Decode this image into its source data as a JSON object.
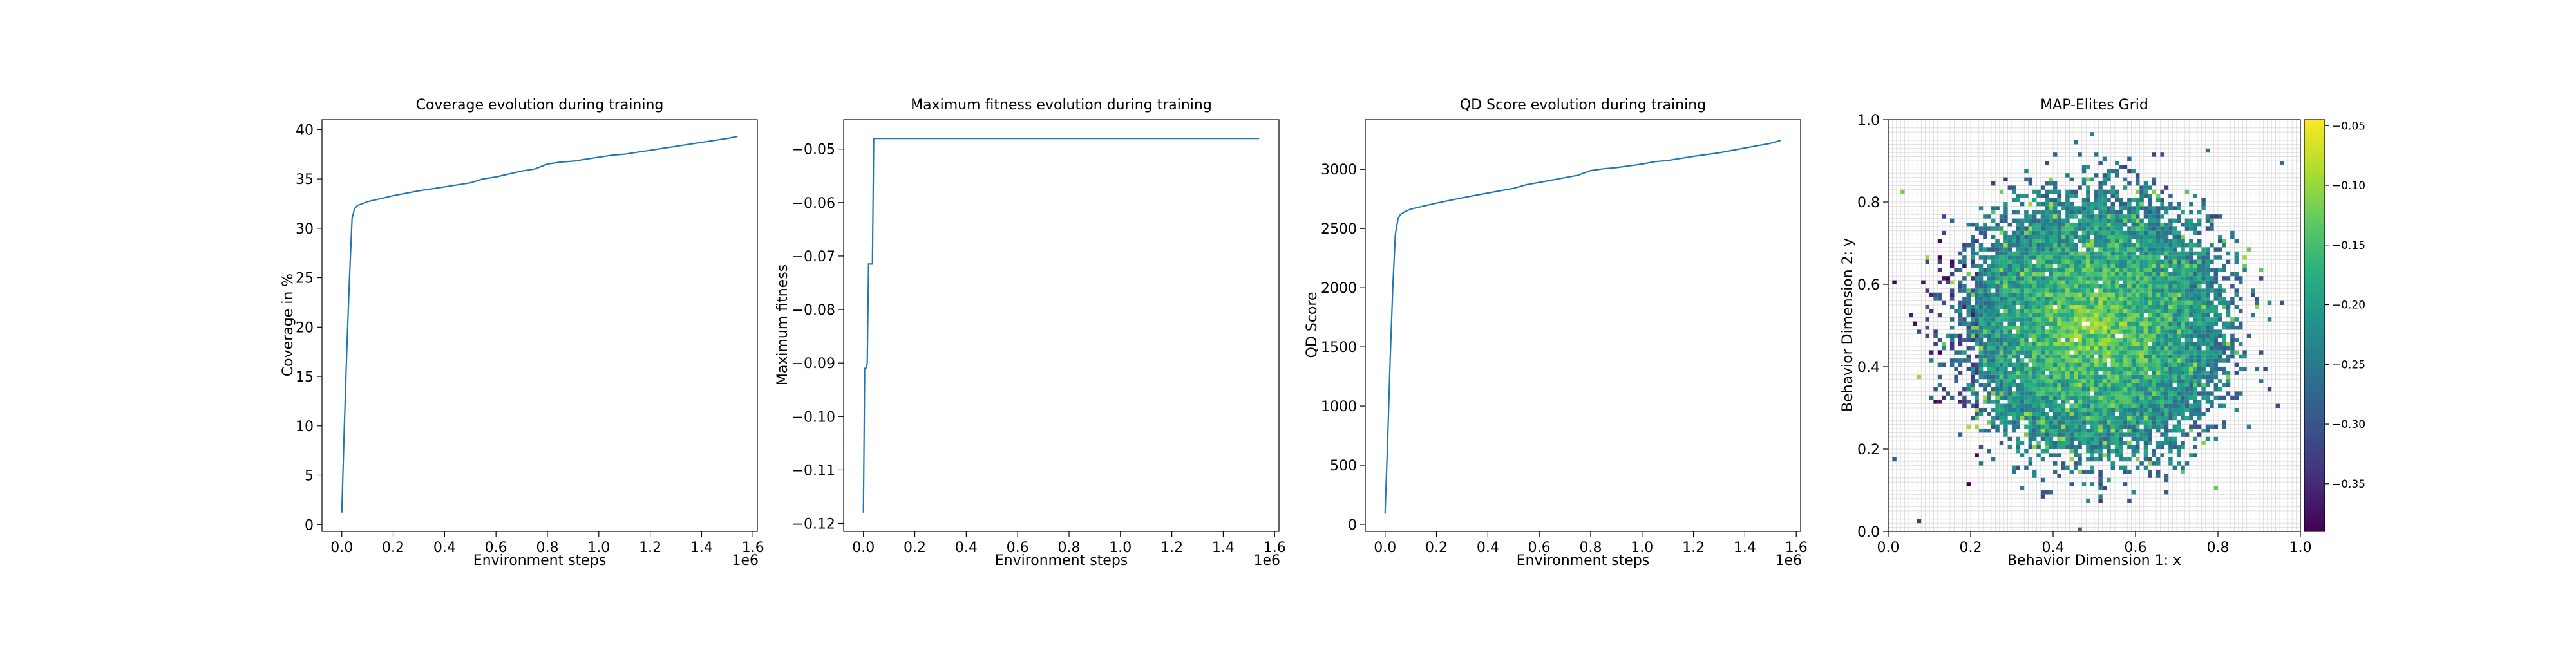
{
  "chart_data": [
    {
      "type": "line",
      "title": "Coverage evolution during training",
      "xlabel": "Environment steps",
      "ylabel": "Coverage in %",
      "x_offset_text": "1e6",
      "xlim": [
        -0.077,
        1.617
      ],
      "ylim": [
        -0.7,
        41.0
      ],
      "xticks": [
        0.0,
        0.2,
        0.4,
        0.6,
        0.8,
        1.0,
        1.2,
        1.4,
        1.6
      ],
      "xtick_labels": [
        "0.0",
        "0.2",
        "0.4",
        "0.6",
        "0.8",
        "1.0",
        "1.2",
        "1.4",
        "1.6"
      ],
      "yticks": [
        0,
        5,
        10,
        15,
        20,
        25,
        30,
        35,
        40
      ],
      "ytick_labels": [
        "0",
        "5",
        "10",
        "15",
        "20",
        "25",
        "30",
        "35",
        "40"
      ],
      "line_color": "#1f77b4",
      "series": [
        {
          "x": [
            0.0,
            0.01,
            0.02,
            0.03,
            0.04,
            0.05,
            0.06,
            0.08,
            0.1,
            0.15,
            0.2,
            0.3,
            0.4,
            0.5,
            0.55,
            0.6,
            0.7,
            0.75,
            0.8,
            0.85,
            0.9,
            1.0,
            1.05,
            1.1,
            1.2,
            1.3,
            1.4,
            1.5,
            1.54
          ],
          "y": [
            1.2,
            10.0,
            18.0,
            25.0,
            31.0,
            32.0,
            32.3,
            32.5,
            32.7,
            33.0,
            33.3,
            33.8,
            34.2,
            34.6,
            35.0,
            35.2,
            35.8,
            36.0,
            36.5,
            36.7,
            36.8,
            37.2,
            37.4,
            37.5,
            37.9,
            38.3,
            38.7,
            39.1,
            39.3
          ]
        }
      ]
    },
    {
      "type": "line",
      "title": "Maximum fitness evolution during training",
      "xlabel": "Environment steps",
      "ylabel": "Maximum fitness",
      "x_offset_text": "1e6",
      "xlim": [
        -0.077,
        1.617
      ],
      "ylim": [
        -0.1215,
        -0.0445
      ],
      "xticks": [
        0.0,
        0.2,
        0.4,
        0.6,
        0.8,
        1.0,
        1.2,
        1.4,
        1.6
      ],
      "xtick_labels": [
        "0.0",
        "0.2",
        "0.4",
        "0.6",
        "0.8",
        "1.0",
        "1.2",
        "1.4",
        "1.6"
      ],
      "yticks": [
        -0.05,
        -0.06,
        -0.07,
        -0.08,
        -0.09,
        -0.1,
        -0.11,
        -0.12
      ],
      "ytick_labels": [
        "−0.05",
        "−0.06",
        "−0.07",
        "−0.08",
        "−0.09",
        "−0.10",
        "−0.11",
        "−0.12"
      ],
      "line_color": "#1f77b4",
      "series": [
        {
          "x": [
            0.0,
            0.005,
            0.01,
            0.015,
            0.02,
            0.025,
            0.03,
            0.035,
            0.04,
            0.045,
            0.05,
            1.54
          ],
          "y": [
            -0.118,
            -0.091,
            -0.091,
            -0.09,
            -0.0715,
            -0.0715,
            -0.0715,
            -0.0715,
            -0.048,
            -0.048,
            -0.048,
            -0.048
          ]
        }
      ]
    },
    {
      "type": "line",
      "title": "QD Score evolution during training",
      "xlabel": "Environment steps",
      "ylabel": "QD Score",
      "x_offset_text": "1e6",
      "xlim": [
        -0.077,
        1.617
      ],
      "ylim": [
        -60,
        3420
      ],
      "xticks": [
        0.0,
        0.2,
        0.4,
        0.6,
        0.8,
        1.0,
        1.2,
        1.4,
        1.6
      ],
      "xtick_labels": [
        "0.0",
        "0.2",
        "0.4",
        "0.6",
        "0.8",
        "1.0",
        "1.2",
        "1.4",
        "1.6"
      ],
      "yticks": [
        0,
        500,
        1000,
        1500,
        2000,
        2500,
        3000
      ],
      "ytick_labels": [
        "0",
        "500",
        "1000",
        "1500",
        "2000",
        "2500",
        "3000"
      ],
      "line_color": "#1f77b4",
      "series": [
        {
          "x": [
            0.0,
            0.01,
            0.02,
            0.03,
            0.04,
            0.05,
            0.06,
            0.08,
            0.1,
            0.15,
            0.2,
            0.3,
            0.4,
            0.5,
            0.55,
            0.6,
            0.7,
            0.75,
            0.8,
            0.85,
            0.9,
            1.0,
            1.05,
            1.1,
            1.2,
            1.3,
            1.4,
            1.5,
            1.54
          ],
          "y": [
            90,
            700,
            1400,
            2000,
            2450,
            2580,
            2620,
            2645,
            2665,
            2690,
            2715,
            2760,
            2800,
            2840,
            2870,
            2890,
            2930,
            2950,
            2990,
            3005,
            3015,
            3045,
            3065,
            3075,
            3110,
            3140,
            3180,
            3220,
            3245
          ]
        }
      ]
    },
    {
      "type": "heatmap",
      "title": "MAP-Elites Grid",
      "xlabel": "Behavior Dimension 1: x",
      "ylabel": "Behavior Dimension 2: y",
      "xlim": [
        0.0,
        1.0
      ],
      "ylim": [
        0.0,
        1.0
      ],
      "xticks": [
        0.0,
        0.2,
        0.4,
        0.6,
        0.8,
        1.0
      ],
      "xtick_labels": [
        "0.0",
        "0.2",
        "0.4",
        "0.6",
        "0.8",
        "1.0"
      ],
      "yticks": [
        0.0,
        0.2,
        0.4,
        0.6,
        0.8,
        1.0
      ],
      "ytick_labels": [
        "0.0",
        "0.2",
        "0.4",
        "0.6",
        "0.8",
        "1.0"
      ],
      "grid_cells": 100,
      "grid": true,
      "colormap": "viridis",
      "color_range": [
        -0.39,
        -0.045
      ],
      "colorbar_ticks": [
        -0.05,
        -0.1,
        -0.15,
        -0.2,
        -0.25,
        -0.3,
        -0.35
      ],
      "colorbar_tick_labels": [
        "−0.05",
        "−0.10",
        "−0.15",
        "−0.20",
        "−0.25",
        "−0.30",
        "−0.35"
      ],
      "distribution": {
        "center": [
          0.5,
          0.5
        ],
        "filled_radius": 0.28,
        "max_radius": 0.48,
        "value_at_center": -0.115,
        "value_at_edge": -0.3,
        "coverage_percent": 39.3
      }
    }
  ]
}
